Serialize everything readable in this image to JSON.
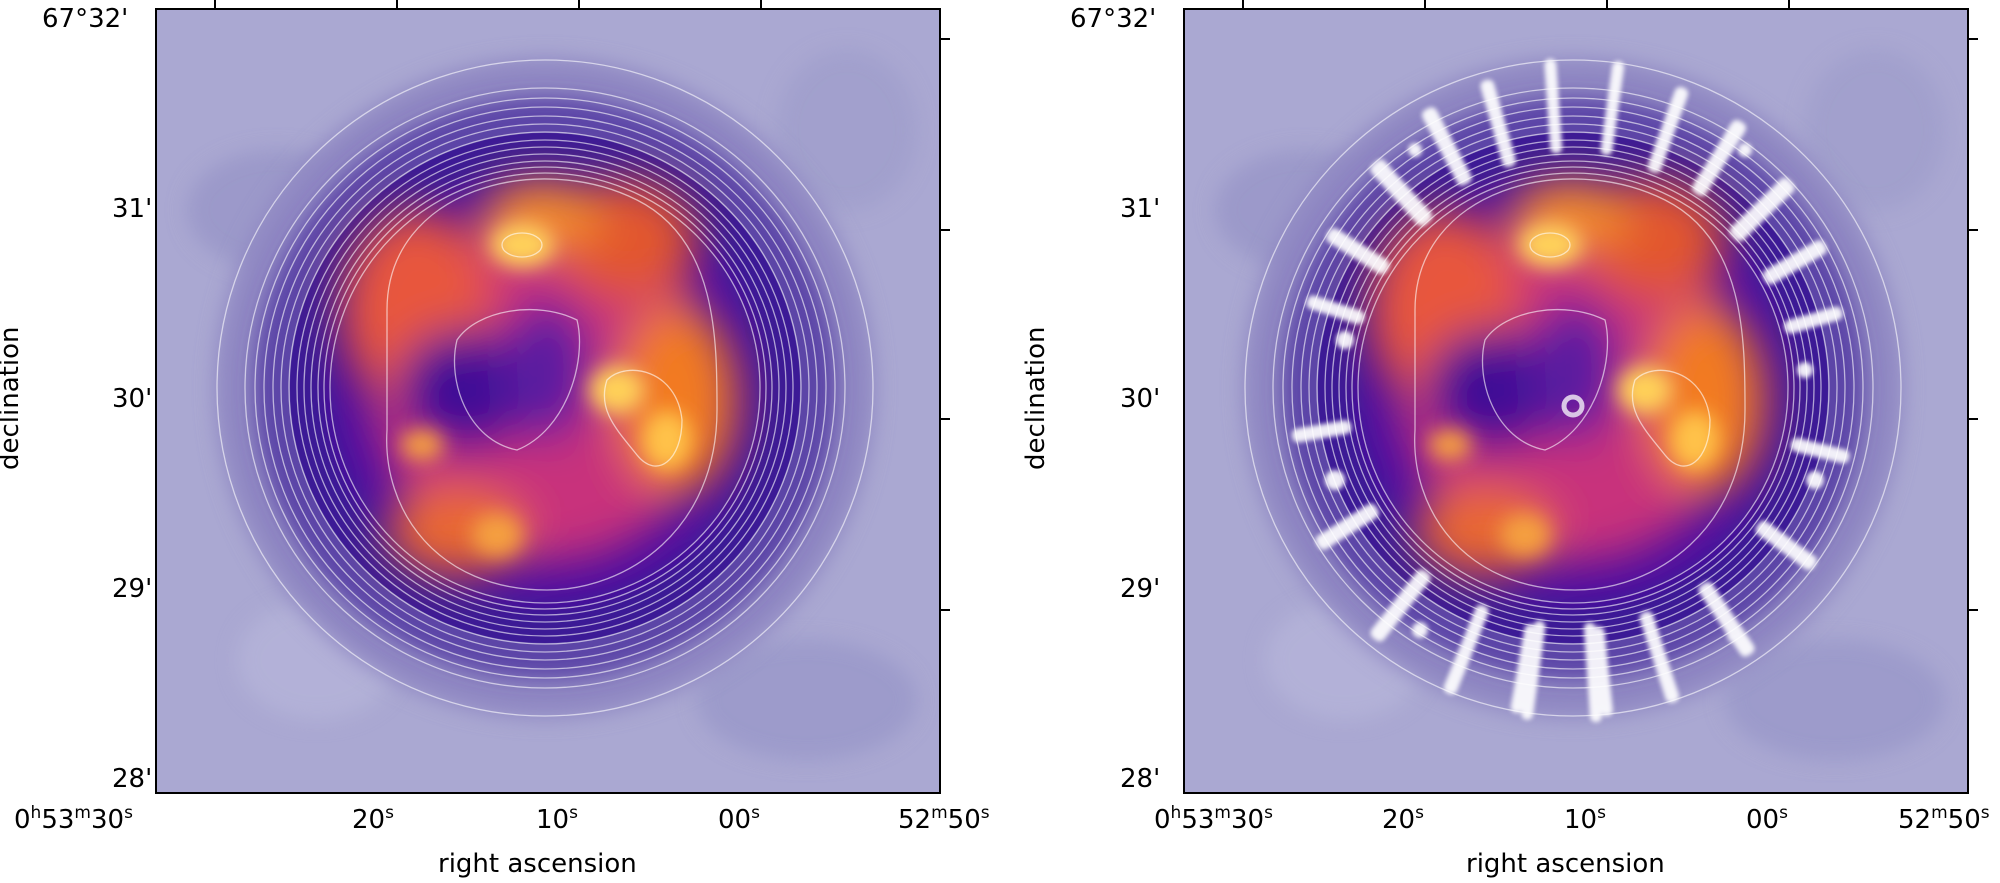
{
  "panels": [
    {
      "id": "left",
      "xlabel": "right ascension",
      "ylabel": "declination",
      "ra_ticks": [
        {
          "h": "0",
          "m": "53",
          "s": "30"
        },
        {
          "s": "20"
        },
        {
          "s": "10"
        },
        {
          "s": "00"
        },
        {
          "m": "52",
          "s": "50"
        }
      ],
      "dec_ticks": [
        "67°32'",
        "31'",
        "30'",
        "29'",
        "28'"
      ]
    },
    {
      "id": "right",
      "xlabel": "right ascension",
      "ylabel": "declination",
      "ra_ticks": [
        {
          "h": "0",
          "m": "53",
          "s": "30"
        },
        {
          "s": "20"
        },
        {
          "s": "10"
        },
        {
          "s": "00"
        },
        {
          "m": "52",
          "s": "50"
        }
      ],
      "dec_ticks": [
        "67°32'",
        "31'",
        "30'",
        "29'",
        "28'"
      ]
    }
  ],
  "units": {
    "h": "h",
    "m": "m",
    "s": "s"
  }
}
